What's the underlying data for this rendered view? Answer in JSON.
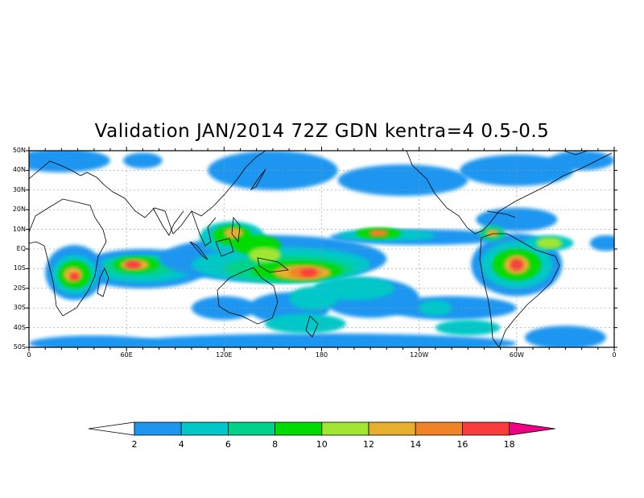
{
  "title": "Validation JAN/2014 72Z GDN kentra=4 0.5-0.5",
  "map": {
    "lat_labels": [
      "50N",
      "40N",
      "30N",
      "20N",
      "10N",
      "EQ",
      "10S",
      "20S",
      "30S",
      "40S",
      "50S"
    ],
    "lon_labels": [
      "0",
      "60E",
      "120E",
      "180",
      "120W",
      "60W",
      "0"
    ]
  },
  "colorbar": {
    "levels": [
      "2",
      "4",
      "6",
      "8",
      "10",
      "12",
      "14",
      "16",
      "18"
    ],
    "colors": [
      "#ffffff",
      "#1e96f0",
      "#00c8c8",
      "#00d28c",
      "#00dc00",
      "#a0e632",
      "#e6af2d",
      "#f08228",
      "#fa3c3c",
      "#f00082"
    ]
  },
  "chart_data": {
    "type": "heatmap",
    "title": "Validation JAN/2014 72Z GDN kentra=4 0.5-0.5",
    "xlabel": "",
    "ylabel": "",
    "xlim": [
      0,
      360
    ],
    "ylim": [
      -50,
      50
    ],
    "x_ticks": [
      "0",
      "60E",
      "120E",
      "180",
      "120W",
      "60W",
      "0"
    ],
    "y_ticks": [
      "50N",
      "40N",
      "30N",
      "20N",
      "10N",
      "EQ",
      "10S",
      "20S",
      "30S",
      "40S",
      "50S"
    ],
    "grid": true,
    "color_levels": [
      2,
      4,
      6,
      8,
      10,
      12,
      14,
      16,
      18
    ],
    "maxima": [
      {
        "lon": 65,
        "lat": -8,
        "level": 18
      },
      {
        "lon": 28,
        "lat": -13,
        "level": 16
      },
      {
        "lon": 170,
        "lat": -12,
        "level": 18
      },
      {
        "lon": 125,
        "lat": 8,
        "level": 14
      },
      {
        "lon": 215,
        "lat": 8,
        "level": 16
      },
      {
        "lon": 300,
        "lat": -8,
        "level": 16
      },
      {
        "lon": 320,
        "lat": 3,
        "level": 14
      },
      {
        "lon": 285,
        "lat": 8,
        "level": 14
      }
    ]
  }
}
